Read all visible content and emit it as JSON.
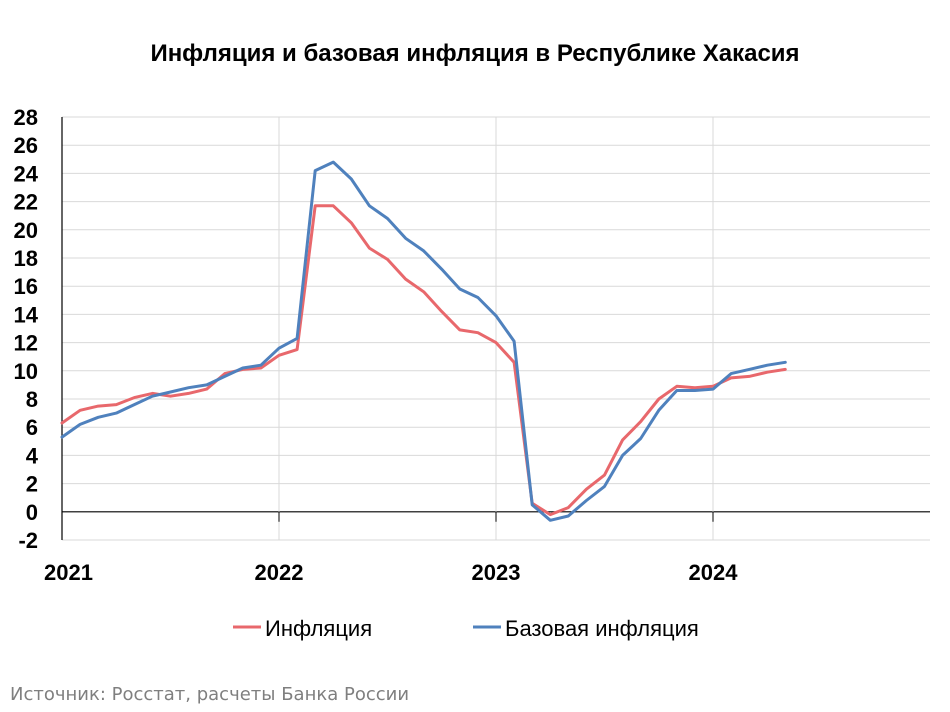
{
  "chart_data": {
    "type": "line",
    "title": "Инфляция и базовая инфляция в Республике Хакасия",
    "xlabel": "",
    "ylabel": "",
    "ylim": [
      -2,
      28
    ],
    "yticks": [
      -2,
      0,
      2,
      4,
      6,
      8,
      10,
      12,
      14,
      16,
      18,
      20,
      22,
      24,
      26,
      28
    ],
    "xlim": [
      "2021-01",
      "2024-12"
    ],
    "xticks": [
      "2021",
      "2022",
      "2023",
      "2024"
    ],
    "grid": true,
    "legend_position": "bottom",
    "x": [
      "2021-01",
      "2021-02",
      "2021-03",
      "2021-04",
      "2021-05",
      "2021-06",
      "2021-07",
      "2021-08",
      "2021-09",
      "2021-10",
      "2021-11",
      "2021-12",
      "2022-01",
      "2022-02",
      "2022-03",
      "2022-04",
      "2022-05",
      "2022-06",
      "2022-07",
      "2022-08",
      "2022-09",
      "2022-10",
      "2022-11",
      "2022-12",
      "2023-01",
      "2023-02",
      "2023-03",
      "2023-04",
      "2023-05",
      "2023-06",
      "2023-07",
      "2023-08",
      "2023-09",
      "2023-10",
      "2023-11",
      "2023-12",
      "2024-01",
      "2024-02",
      "2024-03",
      "2024-04",
      "2024-05"
    ],
    "series": [
      {
        "name": "Инфляция",
        "color": "#e8686c",
        "values": [
          6.3,
          7.2,
          7.5,
          7.6,
          8.1,
          8.4,
          8.2,
          8.4,
          8.7,
          9.8,
          10.1,
          10.2,
          11.1,
          11.5,
          21.7,
          21.7,
          20.5,
          18.7,
          17.9,
          16.5,
          15.6,
          14.2,
          12.9,
          12.7,
          12.0,
          10.6,
          0.6,
          -0.2,
          0.3,
          1.6,
          2.6,
          5.1,
          6.4,
          8.0,
          8.9,
          8.8,
          8.9,
          9.5,
          9.6,
          9.9,
          10.1
        ]
      },
      {
        "name": "Базовая инфляция",
        "color": "#4f81bd",
        "values": [
          5.3,
          6.2,
          6.7,
          7.0,
          7.6,
          8.2,
          8.5,
          8.8,
          9.0,
          9.6,
          10.2,
          10.4,
          11.6,
          12.3,
          24.2,
          24.8,
          23.6,
          21.7,
          20.8,
          19.4,
          18.5,
          17.2,
          15.8,
          15.2,
          13.9,
          12.1,
          0.5,
          -0.6,
          -0.3,
          0.8,
          1.8,
          4.0,
          5.2,
          7.2,
          8.6,
          8.6,
          8.7,
          9.8,
          10.1,
          10.4,
          10.6
        ]
      }
    ],
    "source": "Источник: Росстат, расчеты Банка России"
  }
}
